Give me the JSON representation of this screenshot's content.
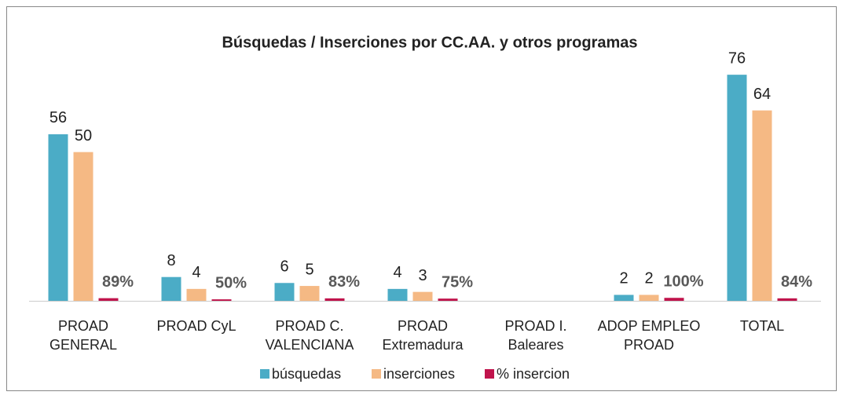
{
  "chart_data": {
    "type": "bar",
    "title": "Búsquedas / Inserciones por CC.AA. y otros programas",
    "categories": [
      "PROAD GENERAL",
      "PROAD CyL",
      "PROAD C. VALENCIANA",
      "PROAD Extremadura",
      "PROAD I. Baleares",
      "ADOP EMPLEO PROAD",
      "TOTAL"
    ],
    "series": [
      {
        "name": "búsquedas",
        "color": "#4bacc6",
        "values": [
          56,
          8,
          6,
          4,
          null,
          2,
          76
        ]
      },
      {
        "name": "inserciones",
        "color": "#f5b984",
        "values": [
          50,
          4,
          5,
          3,
          null,
          2,
          64
        ]
      },
      {
        "name": "% insercion",
        "color": "#c0144c",
        "values": [
          0.89,
          0.5,
          0.83,
          0.75,
          null,
          1,
          0.84
        ],
        "value_labels": [
          "89%",
          "50%",
          "83%",
          "75%",
          null,
          "100%",
          "84%"
        ]
      }
    ],
    "ylim": [
      0,
      80
    ],
    "legend": "bottom"
  }
}
